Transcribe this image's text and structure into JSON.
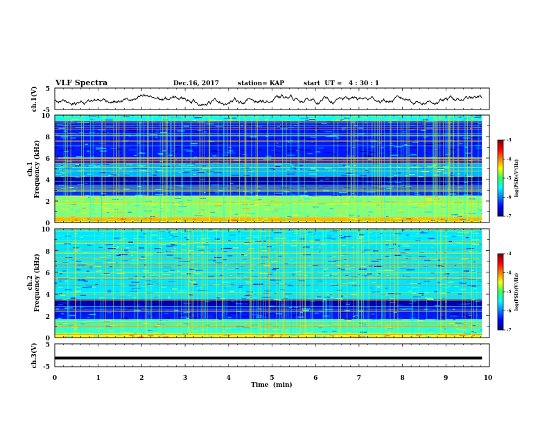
{
  "header": {
    "title": "VLF Spectra",
    "date": "Dec.16, 2017",
    "station": "station= KAP",
    "start": "start  UT =   4 : 30 : 1"
  },
  "x_axis": {
    "label": "Time  (min)",
    "ticks": [
      "0",
      "1",
      "2",
      "3",
      "4",
      "5",
      "6",
      "7",
      "8",
      "9",
      "10"
    ]
  },
  "panels": {
    "ch1_wave": {
      "ylabel": "ch.1(V)",
      "ticks": [
        "5",
        "-5"
      ]
    },
    "ch1_spec": {
      "ylabel1": "ch.1",
      "ylabel2": "Frequency (kHz)",
      "ticks": [
        "10",
        "8",
        "6",
        "4",
        "2",
        "0"
      ]
    },
    "ch2_spec": {
      "ylabel1": "ch.2",
      "ylabel2": "Frequency (kHz)",
      "ticks": [
        "10",
        "8",
        "6",
        "4",
        "2",
        "0"
      ]
    },
    "ch3_wave": {
      "ylabel": "ch.3(V)",
      "ticks": [
        "5",
        "-5"
      ]
    }
  },
  "colorbar": {
    "label": "log(PSD)(V²/Hz)",
    "ticks": [
      "-3",
      "-4",
      "-5",
      "-6",
      "-7"
    ]
  },
  "chart_data": {
    "type": "heatmap",
    "title": "VLF Spectra",
    "xlabel": "Time  (min)",
    "xlim": [
      0,
      10
    ],
    "data_end_min": 9.83,
    "waveform_ch1": {
      "ylabel": "ch.1(V)",
      "ylim": [
        -5,
        5
      ],
      "typical_range": [
        -3,
        2
      ]
    },
    "waveform_ch3": {
      "ylabel": "ch.3(V)",
      "ylim": [
        -5,
        5
      ],
      "constant_value": -1.2
    },
    "spectrogram_ch1": {
      "ylabel": "Frequency (kHz)",
      "ylim": [
        0,
        10
      ],
      "zlabel": "log(PSD)(V²/Hz)",
      "zlim": [
        -7,
        -3
      ],
      "bands": [
        {
          "f": [
            0.0,
            0.5
          ],
          "level": -4.2
        },
        {
          "f": [
            0.5,
            2.5
          ],
          "level": -5.0
        },
        {
          "f": [
            2.5,
            3.5
          ],
          "level": -6.3
        },
        {
          "f": [
            3.5,
            4.3
          ],
          "level": -6.8
        },
        {
          "f": [
            4.3,
            5.5
          ],
          "level": -5.8
        },
        {
          "f": [
            5.5,
            9.5
          ],
          "level": -6.4
        },
        {
          "f": [
            9.5,
            10.0
          ],
          "level": -5.5
        }
      ]
    },
    "spectrogram_ch2": {
      "ylabel": "Frequency (kHz)",
      "ylim": [
        0,
        10
      ],
      "zlabel": "log(PSD)(V²/Hz)",
      "zlim": [
        -7,
        -3
      ],
      "bands": [
        {
          "f": [
            0.0,
            0.4
          ],
          "level": -4.5
        },
        {
          "f": [
            0.4,
            1.7
          ],
          "level": -5.3
        },
        {
          "f": [
            1.7,
            2.9
          ],
          "level": -6.4
        },
        {
          "f": [
            2.9,
            3.5
          ],
          "level": -6.8
        },
        {
          "f": [
            3.5,
            9.9
          ],
          "level": -5.6
        },
        {
          "f": [
            9.9,
            10.0
          ],
          "level": -5.3
        }
      ]
    },
    "grid": false
  }
}
